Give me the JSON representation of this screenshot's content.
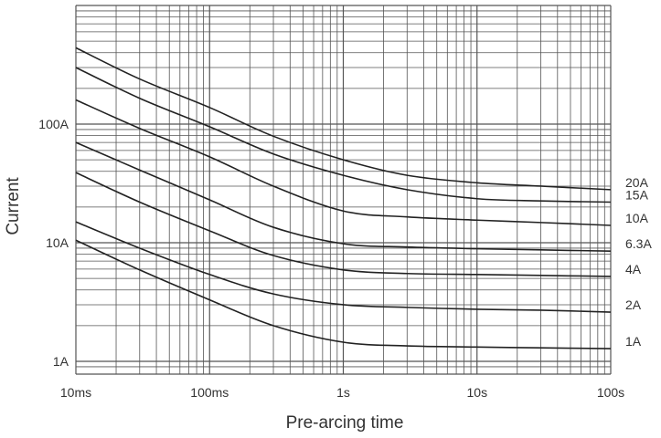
{
  "chart_data": {
    "type": "line",
    "title": "",
    "xlabel": "Pre-arcing time",
    "ylabel": "Current",
    "x_scale": "log",
    "y_scale": "log",
    "xlim": [
      "10ms",
      "100s"
    ],
    "ylim": [
      "1A",
      "1000A"
    ],
    "x_ticks": [
      {
        "label": "10ms",
        "seconds": 0.01
      },
      {
        "label": "100ms",
        "seconds": 0.1
      },
      {
        "label": "1s",
        "seconds": 1
      },
      {
        "label": "10s",
        "seconds": 10
      },
      {
        "label": "100s",
        "seconds": 100
      }
    ],
    "y_ticks": [
      {
        "label": "1A",
        "amps": 1
      },
      {
        "label": "10A",
        "amps": 10
      },
      {
        "label": "100A",
        "amps": 100
      }
    ],
    "grid": true,
    "line_color": "#222222",
    "grid_color": "#555555",
    "series": [
      {
        "name": "20A",
        "points": [
          {
            "t": 0.01,
            "i": 440
          },
          {
            "t": 0.03,
            "i": 240
          },
          {
            "t": 0.1,
            "i": 138
          },
          {
            "t": 0.3,
            "i": 79
          },
          {
            "t": 1,
            "i": 50
          },
          {
            "t": 3,
            "i": 37
          },
          {
            "t": 10,
            "i": 32
          },
          {
            "t": 30,
            "i": 30
          },
          {
            "t": 100,
            "i": 28
          }
        ]
      },
      {
        "name": "15A",
        "points": [
          {
            "t": 0.01,
            "i": 300
          },
          {
            "t": 0.03,
            "i": 165
          },
          {
            "t": 0.1,
            "i": 95
          },
          {
            "t": 0.3,
            "i": 56
          },
          {
            "t": 1,
            "i": 37
          },
          {
            "t": 3,
            "i": 28
          },
          {
            "t": 10,
            "i": 23.5
          },
          {
            "t": 30,
            "i": 22.5
          },
          {
            "t": 100,
            "i": 22
          }
        ]
      },
      {
        "name": "10A",
        "points": [
          {
            "t": 0.01,
            "i": 160
          },
          {
            "t": 0.03,
            "i": 92
          },
          {
            "t": 0.1,
            "i": 53
          },
          {
            "t": 0.3,
            "i": 30
          },
          {
            "t": 1,
            "i": 18.5
          },
          {
            "t": 3,
            "i": 16.5
          },
          {
            "t": 10,
            "i": 15.5
          },
          {
            "t": 30,
            "i": 14.8
          },
          {
            "t": 100,
            "i": 14
          }
        ]
      },
      {
        "name": "6.3A",
        "points": [
          {
            "t": 0.01,
            "i": 70
          },
          {
            "t": 0.03,
            "i": 41
          },
          {
            "t": 0.1,
            "i": 23
          },
          {
            "t": 0.3,
            "i": 13.5
          },
          {
            "t": 1,
            "i": 9.8
          },
          {
            "t": 3,
            "i": 9.2
          },
          {
            "t": 10,
            "i": 8.9
          },
          {
            "t": 30,
            "i": 8.7
          },
          {
            "t": 100,
            "i": 8.5
          }
        ]
      },
      {
        "name": "4A",
        "points": [
          {
            "t": 0.01,
            "i": 39
          },
          {
            "t": 0.03,
            "i": 22
          },
          {
            "t": 0.1,
            "i": 12.6
          },
          {
            "t": 0.3,
            "i": 7.8
          },
          {
            "t": 1,
            "i": 5.9
          },
          {
            "t": 3,
            "i": 5.5
          },
          {
            "t": 10,
            "i": 5.4
          },
          {
            "t": 30,
            "i": 5.3
          },
          {
            "t": 100,
            "i": 5.2
          }
        ]
      },
      {
        "name": "2A",
        "points": [
          {
            "t": 0.01,
            "i": 15
          },
          {
            "t": 0.03,
            "i": 9
          },
          {
            "t": 0.1,
            "i": 5.4
          },
          {
            "t": 0.3,
            "i": 3.7
          },
          {
            "t": 1,
            "i": 3.0
          },
          {
            "t": 3,
            "i": 2.85
          },
          {
            "t": 10,
            "i": 2.75
          },
          {
            "t": 30,
            "i": 2.7
          },
          {
            "t": 100,
            "i": 2.6
          }
        ]
      },
      {
        "name": "1A",
        "points": [
          {
            "t": 0.01,
            "i": 10.5
          },
          {
            "t": 0.03,
            "i": 5.9
          },
          {
            "t": 0.1,
            "i": 3.3
          },
          {
            "t": 0.3,
            "i": 2.0
          },
          {
            "t": 1,
            "i": 1.45
          },
          {
            "t": 3,
            "i": 1.35
          },
          {
            "t": 10,
            "i": 1.32
          },
          {
            "t": 30,
            "i": 1.3
          },
          {
            "t": 100,
            "i": 1.28
          }
        ]
      }
    ]
  }
}
